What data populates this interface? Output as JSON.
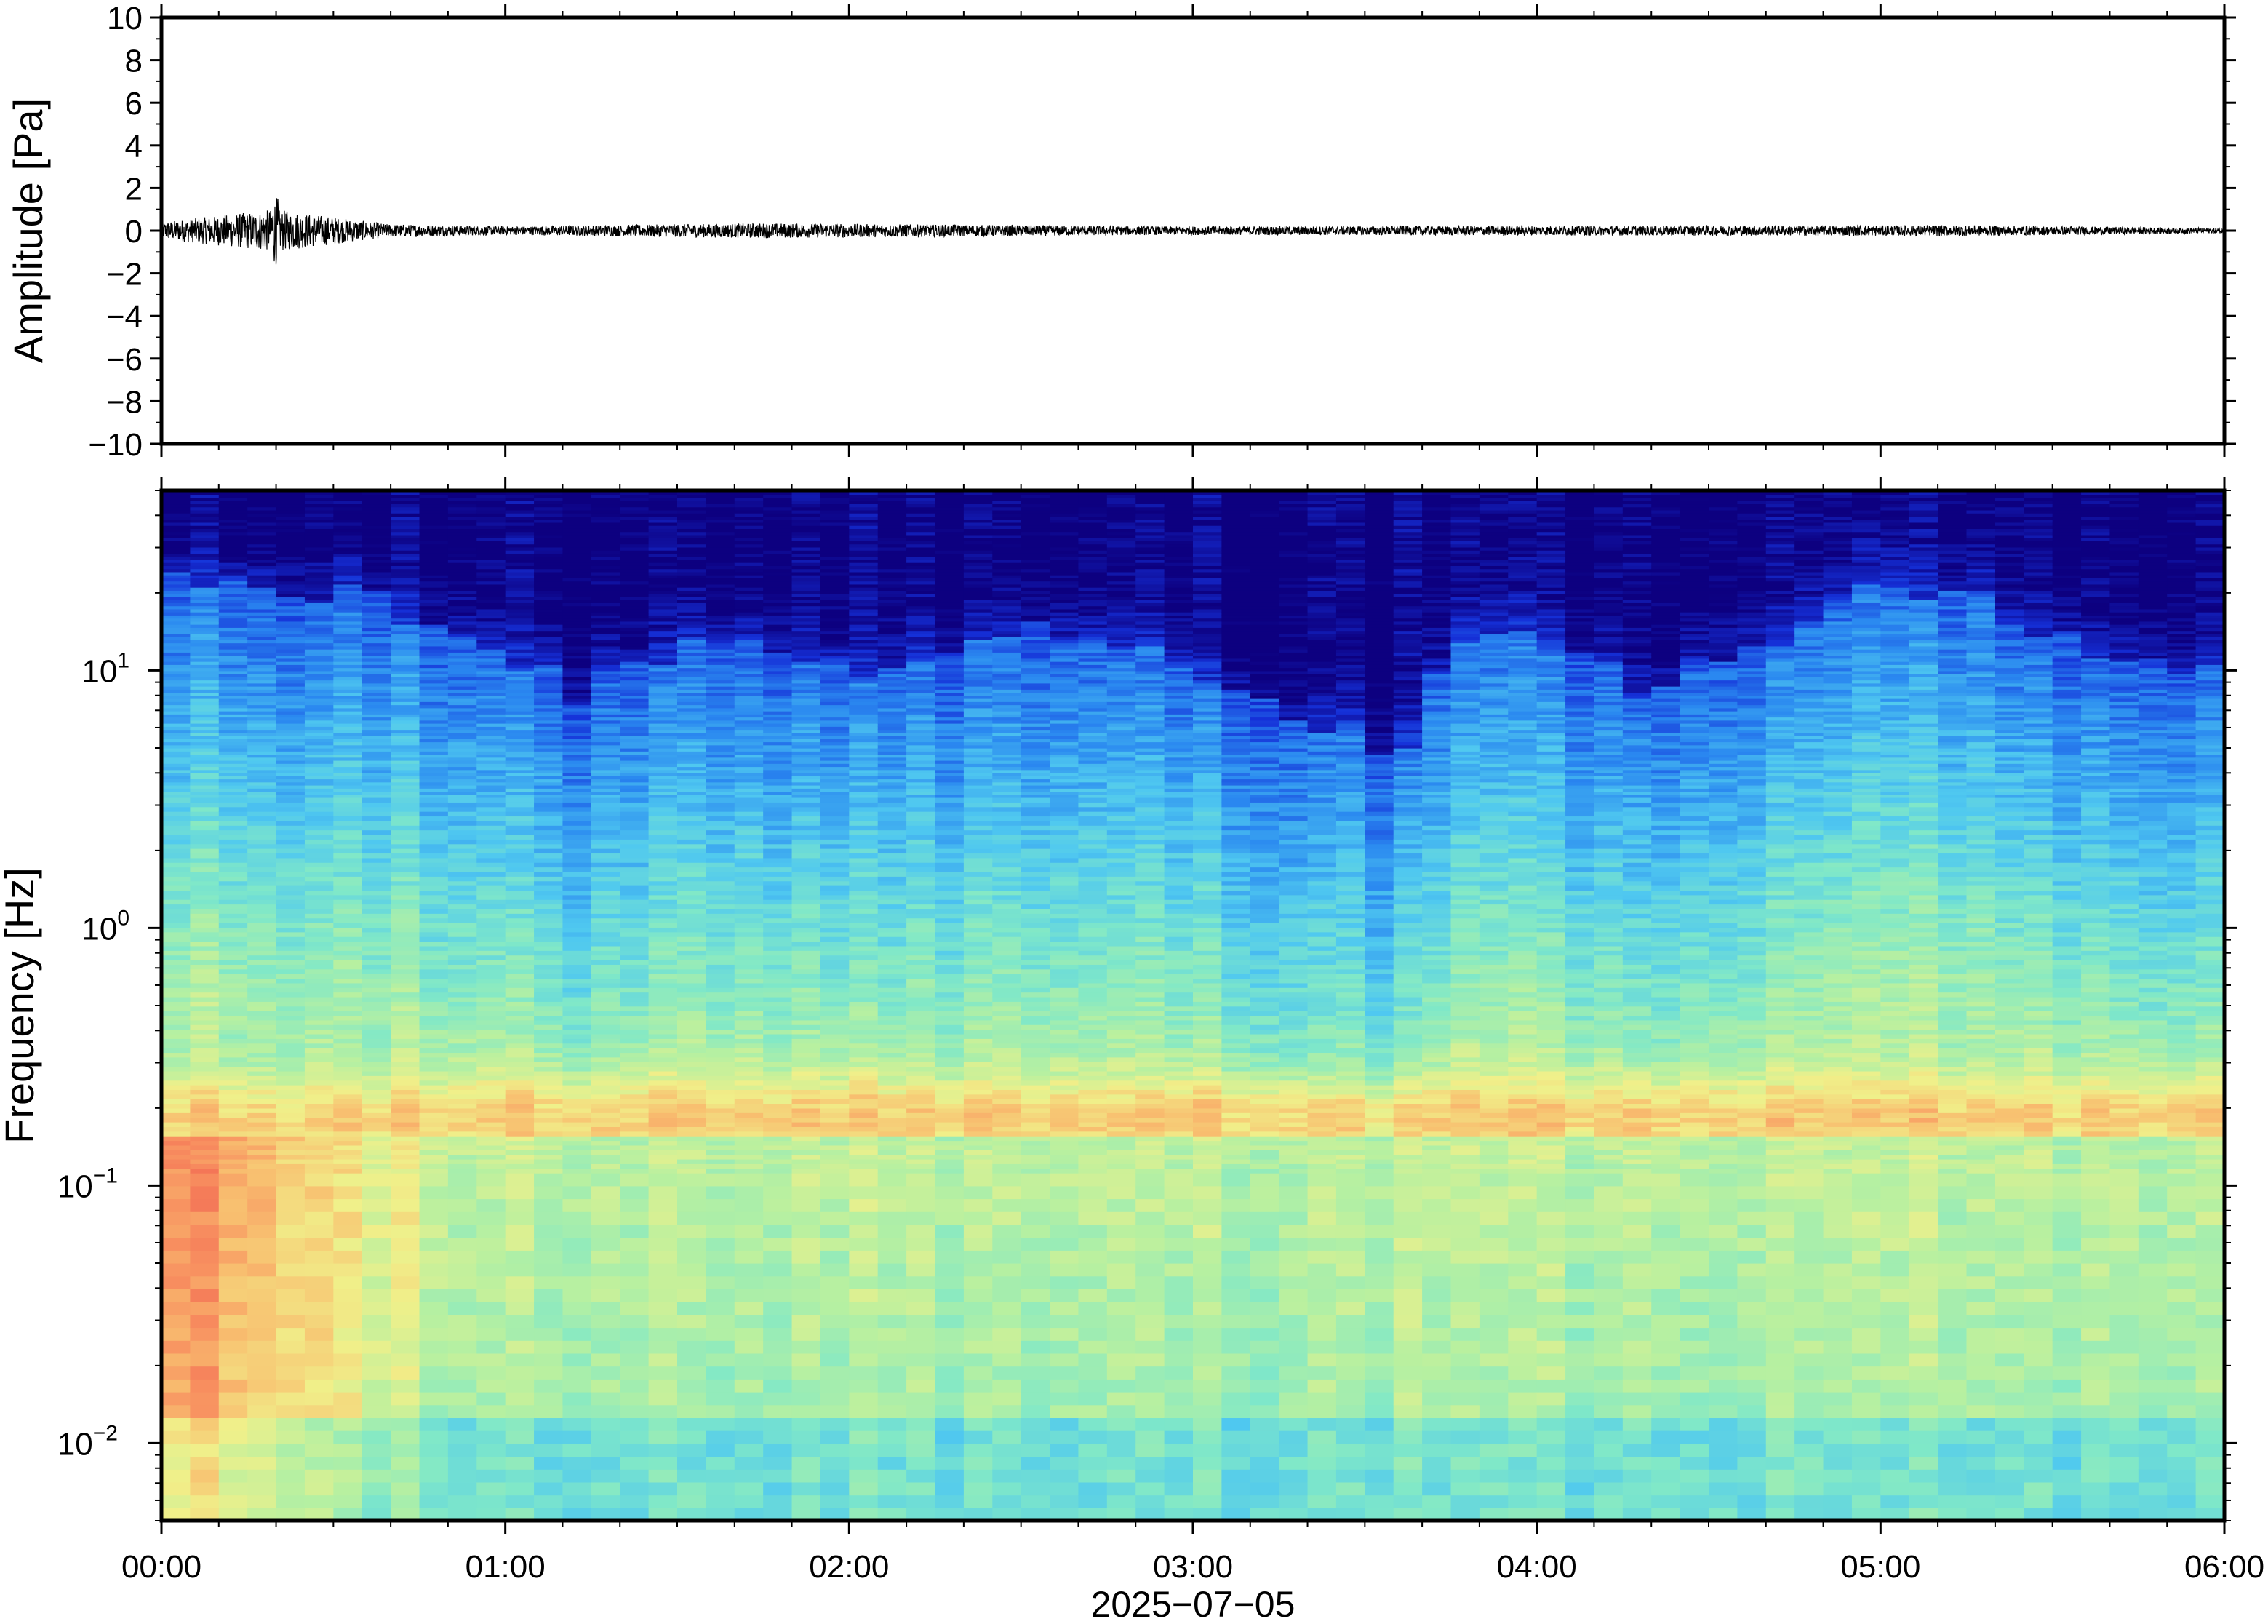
{
  "figure": {
    "date_label": "2025−07−05"
  },
  "chart_data": [
    {
      "type": "line",
      "name": "waveform",
      "ylabel": "Amplitude [Pa]",
      "ylim": [
        -10,
        10
      ],
      "yticks": [
        "10",
        "8",
        "6",
        "4",
        "2",
        "0",
        "−2",
        "−4",
        "−6",
        "−8",
        "−10"
      ],
      "ytick_values": [
        10,
        8,
        6,
        4,
        2,
        0,
        -2,
        -4,
        -6,
        -8,
        -10
      ],
      "xlim": [
        "00:00",
        "06:00"
      ],
      "envelope_description_hours": [
        0,
        0.33,
        0.66,
        1,
        1.75,
        2.9,
        5.25,
        6
      ],
      "envelope_pa": [
        0.4,
        1.0,
        0.3,
        0.2,
        0.35,
        0.2,
        0.25,
        0.12
      ],
      "line_color": "#000000",
      "grid": false
    },
    {
      "type": "heatmap",
      "name": "spectrogram",
      "ylabel": "Frequency [Hz]",
      "yscale": "log",
      "ylim": [
        0.005,
        50
      ],
      "yticks": [
        {
          "base": "10",
          "exp": "1",
          "value": 10
        },
        {
          "base": "10",
          "exp": "0",
          "value": 1
        },
        {
          "base": "10",
          "exp": "−1",
          "value": 0.1
        },
        {
          "base": "10",
          "exp": "−2",
          "value": 0.01
        }
      ],
      "xlabel": "2025−07−05",
      "xticks": [
        "00:00",
        "01:00",
        "02:00",
        "03:00",
        "04:00",
        "05:00",
        "06:00"
      ],
      "xlim_hours": [
        0,
        6
      ],
      "colormap": [
        "#0d0080",
        "#1530d8",
        "#2a88f0",
        "#4fc8f0",
        "#80e8c8",
        "#b8f0a0",
        "#f0f08a",
        "#f8c070",
        "#f89060",
        "#f06050"
      ],
      "upper_power_edge_hz": [
        25,
        22,
        20,
        12,
        8,
        12,
        13,
        9,
        14,
        12,
        7,
        6,
        5,
        14,
        15,
        8,
        14,
        20,
        18,
        12,
        9
      ],
      "upper_edge_time_hours": [
        0,
        0.3,
        0.6,
        1.0,
        1.2,
        1.5,
        1.8,
        2.1,
        2.5,
        2.9,
        3.2,
        3.4,
        3.6,
        3.8,
        4.0,
        4.3,
        4.7,
        5.0,
        5.3,
        5.6,
        6.0
      ],
      "microseism_peak_hz": 0.18,
      "grid": false
    }
  ]
}
